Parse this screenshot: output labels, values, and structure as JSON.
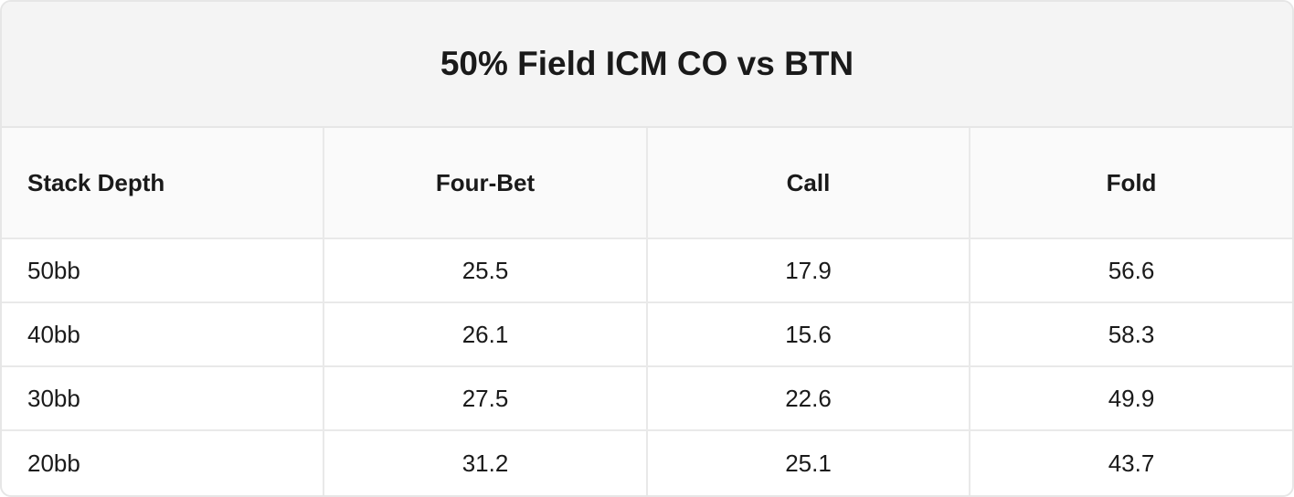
{
  "title": "50% Field ICM CO vs BTN",
  "table": {
    "header": [
      "Stack Depth",
      "Four-Bet",
      "Call",
      "Fold"
    ],
    "rows": [
      [
        "50bb",
        25.5,
        17.9,
        56.6
      ],
      [
        "40bb",
        26.1,
        15.6,
        58.3
      ],
      [
        "30bb",
        27.5,
        22.6,
        49.9
      ],
      [
        "20bb",
        31.2,
        25.1,
        43.7
      ]
    ]
  }
}
